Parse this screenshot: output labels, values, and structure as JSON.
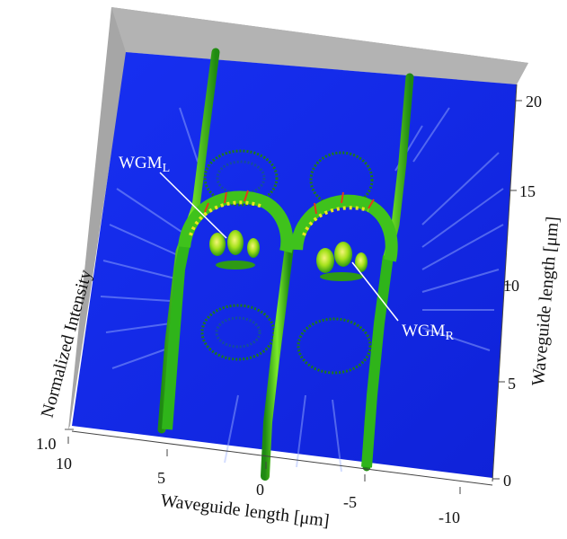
{
  "figure": {
    "colors": {
      "wall": "#a6a6a6",
      "surface": "#1a2ff0",
      "surface_dark": "#0a18c8",
      "mode_green": "#35c41e",
      "mode_yellow": "#e8e81c",
      "mode_red": "#e23a1a",
      "label_line": "#ffffff"
    },
    "axis_left": {
      "label": "Normalized Intensity",
      "tick": "1.0"
    },
    "axis_bottom": {
      "label": "Waveguide length [μm]",
      "ticks": [
        "10",
        "5",
        "0",
        "-5",
        "-10"
      ]
    },
    "axis_right": {
      "label": "Waveguide length [μm]",
      "ticks": [
        "0",
        "5",
        "10",
        "15",
        "20"
      ]
    },
    "annotations": {
      "left": {
        "base": "WGM",
        "sub": "L"
      },
      "right": {
        "base": "WGM",
        "sub": "R"
      }
    }
  }
}
